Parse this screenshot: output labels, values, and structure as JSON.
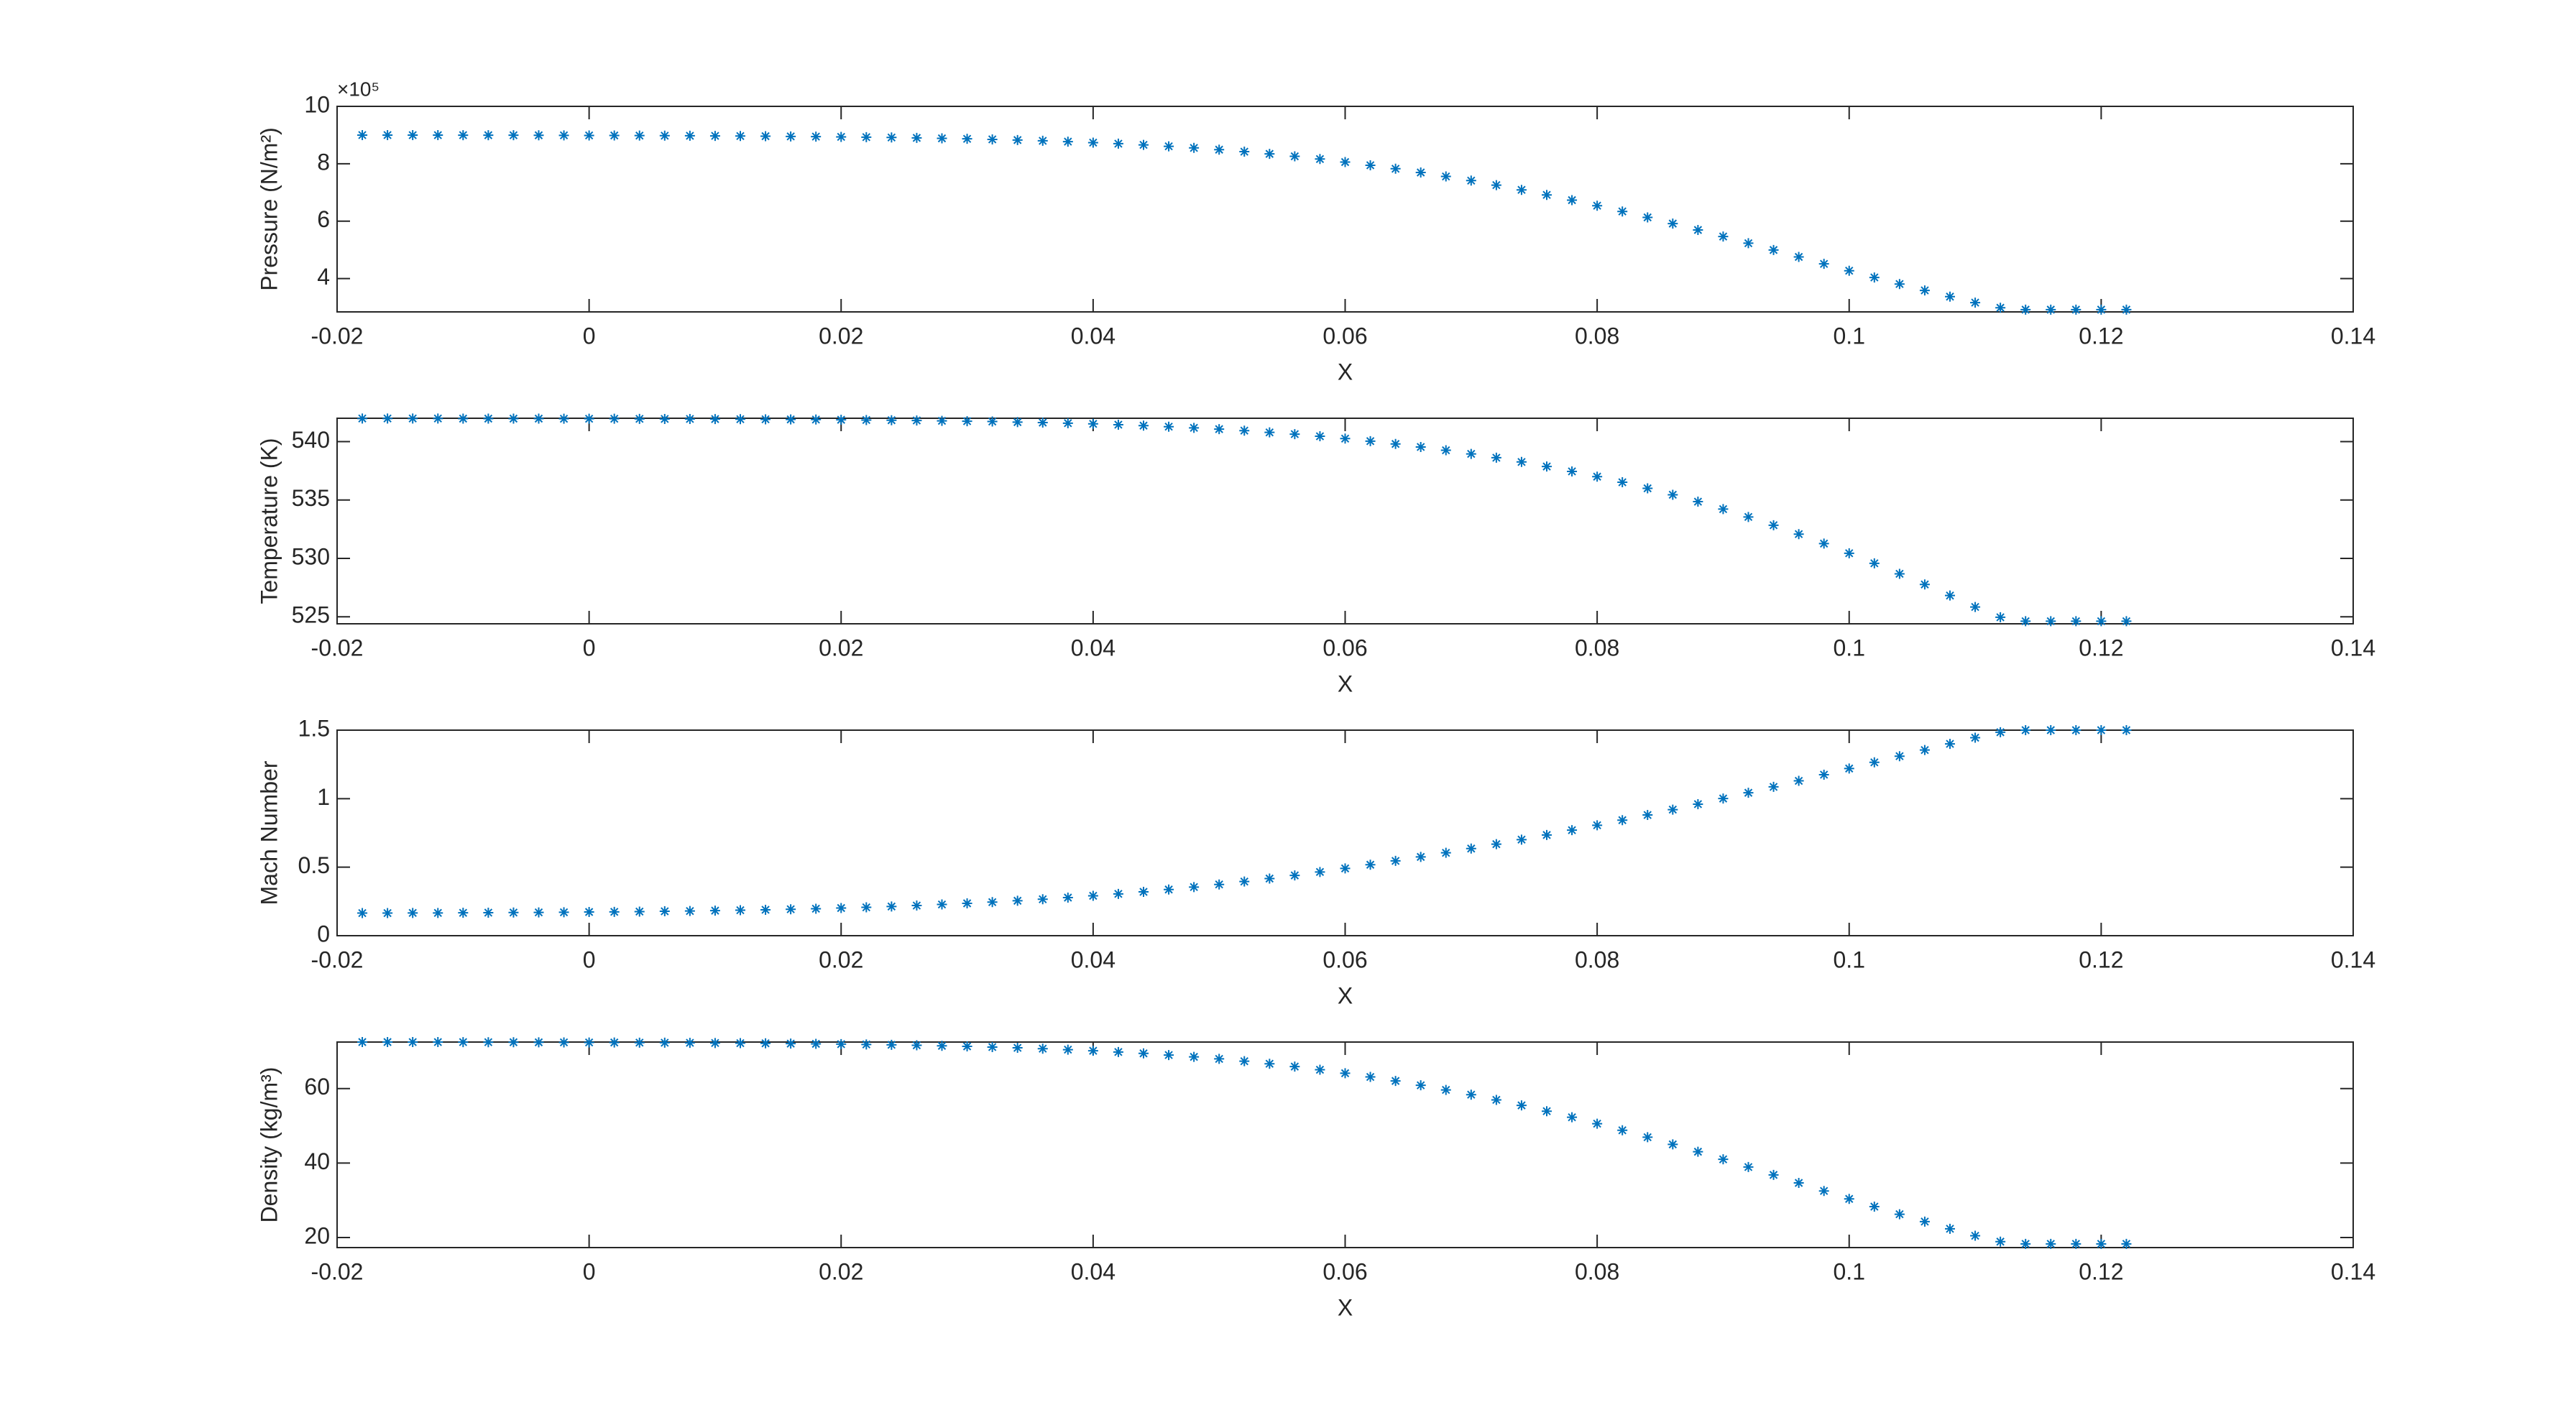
{
  "chart_data": [
    {
      "type": "scatter",
      "marker": "*",
      "color": "#0072BD",
      "xlabel": "X",
      "ylabel": "Pressure (N/m²)",
      "y_exponent_label": "×10⁵",
      "x": [
        -0.018,
        -0.016,
        -0.014,
        -0.012,
        -0.01,
        -0.008,
        -0.006,
        -0.004,
        -0.002,
        0,
        0.002,
        0.004,
        0.006,
        0.008,
        0.01,
        0.012,
        0.014,
        0.016,
        0.018,
        0.02,
        0.022,
        0.024,
        0.026,
        0.028,
        0.03,
        0.032,
        0.034,
        0.036,
        0.038,
        0.04,
        0.042,
        0.044,
        0.046,
        0.048,
        0.05,
        0.052,
        0.054,
        0.056,
        0.058,
        0.06,
        0.062,
        0.064,
        0.066,
        0.068,
        0.07,
        0.072,
        0.074,
        0.076,
        0.078,
        0.08,
        0.082,
        0.084,
        0.086,
        0.088,
        0.09,
        0.092,
        0.094,
        0.096,
        0.098,
        0.1,
        0.102,
        0.104,
        0.106,
        0.108,
        0.11,
        0.112,
        0.114,
        0.116,
        0.118,
        0.12,
        0.122
      ],
      "values": [
        900000,
        900000,
        899800,
        899800,
        899700,
        899500,
        899400,
        899200,
        899000,
        898700,
        898600,
        898200,
        897900,
        897600,
        897100,
        896600,
        896100,
        895300,
        894600,
        893700,
        892800,
        891600,
        890200,
        888600,
        886900,
        884900,
        882600,
        880000,
        877100,
        873700,
        870000,
        865800,
        860800,
        855300,
        849200,
        842200,
        834500,
        826000,
        816500,
        806000,
        794800,
        782700,
        769700,
        755800,
        741400,
        725700,
        709100,
        691600,
        673300,
        654000,
        634000,
        613200,
        591600,
        569400,
        546600,
        523300,
        499600,
        475500,
        451300,
        427400,
        404000,
        381100,
        358900,
        337200,
        316300,
        298400,
        291800,
        291800,
        291800,
        291800,
        291800
      ],
      "xlim": [
        -0.02,
        0.14
      ],
      "xticks": [
        -0.02,
        0,
        0.02,
        0.04,
        0.06,
        0.08,
        0.1,
        0.12,
        0.14
      ],
      "ylim": [
        284000,
        1000000
      ],
      "yticks": [
        {
          "value": 400000,
          "label": "4"
        },
        {
          "value": 600000,
          "label": "6"
        },
        {
          "value": 800000,
          "label": "8"
        },
        {
          "value": 1000000,
          "label": "10"
        }
      ]
    },
    {
      "type": "scatter",
      "marker": "*",
      "color": "#0072BD",
      "xlabel": "X",
      "ylabel": "Temperature (K)",
      "x": [
        -0.018,
        -0.016,
        -0.014,
        -0.012,
        -0.01,
        -0.008,
        -0.006,
        -0.004,
        -0.002,
        0,
        0.002,
        0.004,
        0.006,
        0.008,
        0.01,
        0.012,
        0.014,
        0.016,
        0.018,
        0.02,
        0.022,
        0.024,
        0.026,
        0.028,
        0.03,
        0.032,
        0.034,
        0.036,
        0.038,
        0.04,
        0.042,
        0.044,
        0.046,
        0.048,
        0.05,
        0.052,
        0.054,
        0.056,
        0.058,
        0.06,
        0.062,
        0.064,
        0.066,
        0.068,
        0.07,
        0.072,
        0.074,
        0.076,
        0.078,
        0.08,
        0.082,
        0.084,
        0.086,
        0.088,
        0.09,
        0.092,
        0.094,
        0.096,
        0.098,
        0.1,
        0.102,
        0.104,
        0.106,
        0.108,
        0.11,
        0.112,
        0.114,
        0.116,
        0.118,
        0.12,
        0.122
      ],
      "values": [
        541.98,
        541.98,
        541.98,
        541.98,
        541.97,
        541.97,
        541.97,
        541.97,
        541.96,
        541.96,
        541.96,
        541.95,
        541.94,
        541.94,
        541.93,
        541.92,
        541.91,
        541.9,
        541.89,
        541.87,
        541.85,
        541.83,
        541.81,
        541.78,
        541.75,
        541.72,
        541.67,
        541.63,
        541.58,
        541.52,
        541.45,
        541.37,
        541.28,
        541.18,
        541.07,
        540.94,
        540.79,
        540.64,
        540.46,
        540.26,
        540.04,
        539.8,
        539.54,
        539.26,
        538.95,
        538.62,
        538.26,
        537.87,
        537.45,
        537,
        536.52,
        536,
        535.45,
        534.86,
        534.22,
        533.55,
        532.84,
        532.08,
        531.27,
        530.44,
        529.58,
        528.68,
        527.77,
        526.82,
        525.84,
        524.96,
        524.62,
        524.62,
        524.62,
        524.62,
        524.62
      ],
      "xlim": [
        -0.02,
        0.14
      ],
      "xticks": [
        -0.02,
        0,
        0.02,
        0.04,
        0.06,
        0.08,
        0.1,
        0.12,
        0.14
      ],
      "ylim": [
        524.4,
        542
      ],
      "yticks": [
        525,
        530,
        535,
        540
      ]
    },
    {
      "type": "scatter",
      "marker": "*",
      "color": "#0072BD",
      "xlabel": "X",
      "ylabel": "Mach Number",
      "x": [
        -0.018,
        -0.016,
        -0.014,
        -0.012,
        -0.01,
        -0.008,
        -0.006,
        -0.004,
        -0.002,
        0,
        0.002,
        0.004,
        0.006,
        0.008,
        0.01,
        0.012,
        0.014,
        0.016,
        0.018,
        0.02,
        0.022,
        0.024,
        0.026,
        0.028,
        0.03,
        0.032,
        0.034,
        0.036,
        0.038,
        0.04,
        0.042,
        0.044,
        0.046,
        0.048,
        0.05,
        0.052,
        0.054,
        0.056,
        0.058,
        0.06,
        0.062,
        0.064,
        0.066,
        0.068,
        0.07,
        0.072,
        0.074,
        0.076,
        0.078,
        0.08,
        0.082,
        0.084,
        0.086,
        0.088,
        0.09,
        0.092,
        0.094,
        0.096,
        0.098,
        0.1,
        0.102,
        0.104,
        0.106,
        0.108,
        0.11,
        0.112,
        0.114,
        0.116,
        0.118,
        0.12,
        0.122
      ],
      "values": [
        0.165,
        0.165,
        0.166,
        0.166,
        0.167,
        0.168,
        0.169,
        0.17,
        0.171,
        0.173,
        0.174,
        0.176,
        0.178,
        0.18,
        0.183,
        0.186,
        0.189,
        0.193,
        0.197,
        0.202,
        0.207,
        0.213,
        0.22,
        0.228,
        0.236,
        0.245,
        0.255,
        0.266,
        0.278,
        0.291,
        0.305,
        0.32,
        0.337,
        0.355,
        0.374,
        0.395,
        0.417,
        0.44,
        0.465,
        0.491,
        0.518,
        0.546,
        0.575,
        0.605,
        0.636,
        0.668,
        0.701,
        0.735,
        0.77,
        0.806,
        0.843,
        0.881,
        0.92,
        0.96,
        1.001,
        1.043,
        1.086,
        1.13,
        1.175,
        1.22,
        1.265,
        1.31,
        1.355,
        1.4,
        1.445,
        1.485,
        1.5,
        1.5,
        1.5,
        1.5,
        1.5
      ],
      "xlim": [
        -0.02,
        0.14
      ],
      "xticks": [
        -0.02,
        0,
        0.02,
        0.04,
        0.06,
        0.08,
        0.1,
        0.12,
        0.14
      ],
      "ylim": [
        0,
        1.5
      ],
      "yticks": [
        0,
        0.5,
        1,
        1.5
      ]
    },
    {
      "type": "scatter",
      "marker": "*",
      "color": "#0072BD",
      "xlabel": "X",
      "ylabel": "Density (kg/m³)",
      "x": [
        -0.018,
        -0.016,
        -0.014,
        -0.012,
        -0.01,
        -0.008,
        -0.006,
        -0.004,
        -0.002,
        0,
        0.002,
        0.004,
        0.006,
        0.008,
        0.01,
        0.012,
        0.014,
        0.016,
        0.018,
        0.02,
        0.022,
        0.024,
        0.026,
        0.028,
        0.03,
        0.032,
        0.034,
        0.036,
        0.038,
        0.04,
        0.042,
        0.044,
        0.046,
        0.048,
        0.05,
        0.052,
        0.054,
        0.056,
        0.058,
        0.06,
        0.062,
        0.064,
        0.066,
        0.068,
        0.07,
        0.072,
        0.074,
        0.076,
        0.078,
        0.08,
        0.082,
        0.084,
        0.086,
        0.088,
        0.09,
        0.092,
        0.094,
        0.096,
        0.098,
        0.1,
        0.102,
        0.104,
        0.106,
        0.108,
        0.11,
        0.112,
        0.114,
        0.116,
        0.118,
        0.12,
        0.122
      ],
      "values": [
        72.5,
        72.5,
        72.49,
        72.49,
        72.48,
        72.46,
        72.45,
        72.43,
        72.41,
        72.39,
        72.38,
        72.34,
        72.32,
        72.29,
        72.24,
        72.2,
        72.16,
        72.08,
        72.02,
        71.94,
        71.86,
        71.76,
        71.63,
        71.49,
        71.34,
        71.16,
        70.95,
        70.72,
        70.46,
        70.16,
        69.83,
        69.46,
        69.01,
        68.52,
        67.98,
        67.35,
        66.67,
        65.91,
        65.06,
        64.13,
        63.13,
        62.05,
        60.89,
        59.65,
        58.37,
        56.97,
        55.49,
        53.93,
        52.3,
        50.58,
        48.8,
        46.94,
        45.02,
        43.04,
        41.01,
        38.93,
        36.82,
        34.67,
        32.51,
        30.38,
        28.3,
        26.26,
        24.28,
        22.35,
        20.48,
        18.89,
        18.3,
        18.3,
        18.3,
        18.3,
        18.3
      ],
      "xlim": [
        -0.02,
        0.14
      ],
      "xticks": [
        -0.02,
        0,
        0.02,
        0.04,
        0.06,
        0.08,
        0.1,
        0.12,
        0.14
      ],
      "ylim": [
        17.3,
        72.5
      ],
      "yticks": [
        20,
        40,
        60
      ]
    }
  ]
}
